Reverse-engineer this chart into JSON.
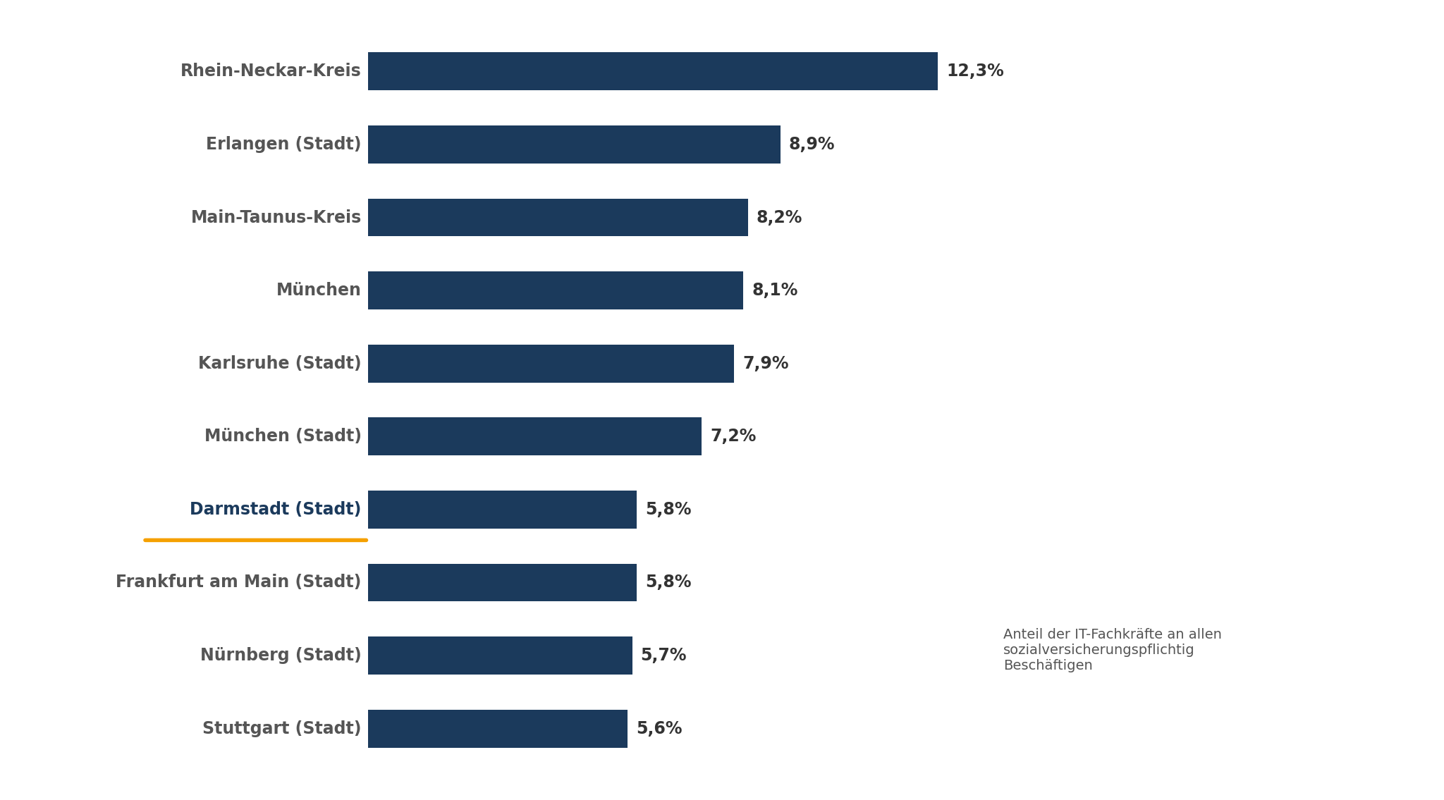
{
  "categories": [
    "Stuttgart (Stadt)",
    "Nürnberg (Stadt)",
    "Frankfurt am Main (Stadt)",
    "Darmstadt (Stadt)",
    "München (Stadt)",
    "Karlsruhe (Stadt)",
    "München",
    "Main-Taunus-Kreis",
    "Erlangen (Stadt)",
    "Rhein-Neckar-Kreis"
  ],
  "values": [
    5.6,
    5.7,
    5.8,
    5.8,
    7.2,
    7.9,
    8.1,
    8.2,
    8.9,
    12.3
  ],
  "bar_color": "#1b3a5c",
  "highlight_label": "Darmstadt (Stadt)",
  "highlight_underline_color": "#f5a000",
  "label_color_normal": "#555555",
  "label_color_highlight": "#1b3a5c",
  "value_label_color": "#333333",
  "background_color": "#ffffff",
  "annotation_text": "Anteil der IT-Fachkräfte an allen\nsozialversicherungspflichtig\nBeschäftigen",
  "bar_height": 0.52,
  "xlim": [
    0,
    14.5
  ],
  "value_fontsize": 17,
  "label_fontsize": 17,
  "annotation_fontsize": 14
}
